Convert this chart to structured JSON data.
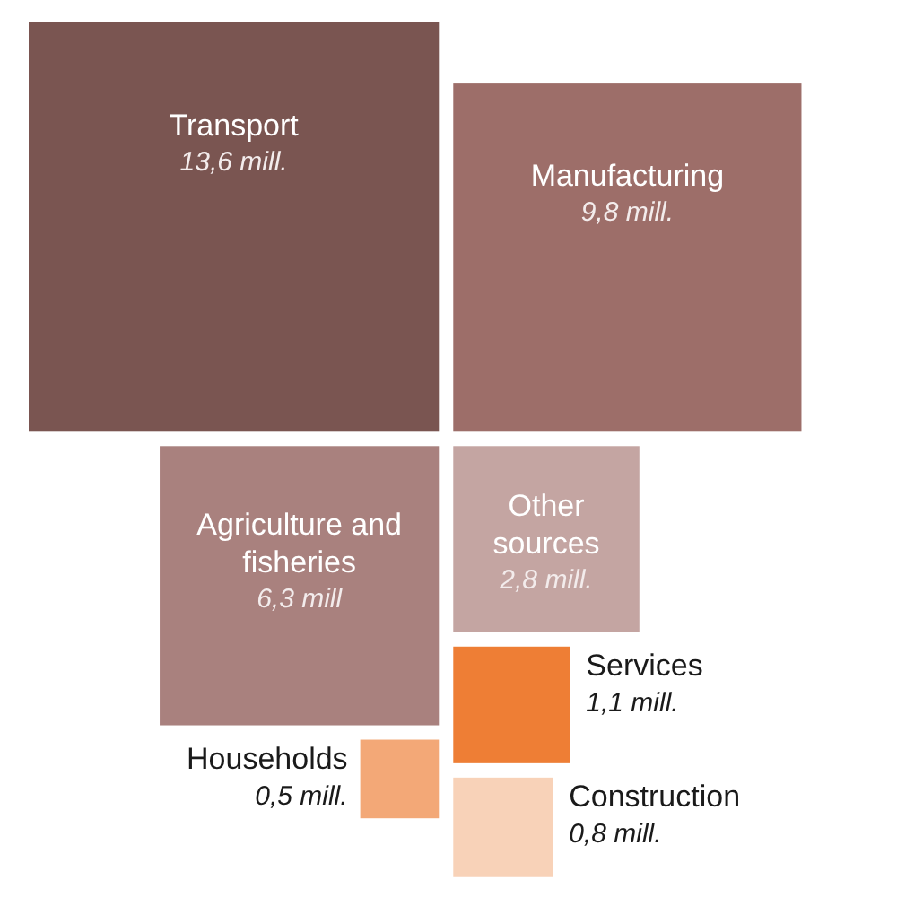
{
  "chart_data": {
    "type": "other",
    "categories": [
      "Transport",
      "Manufacturing",
      "Agriculture and fisheries",
      "Other sources",
      "Services",
      "Households",
      "Construction"
    ],
    "values": [
      13.6,
      9.8,
      6.3,
      2.8,
      1.1,
      0.5,
      0.8
    ],
    "value_labels": [
      "13,6 mill.",
      "9,8 mill.",
      "6,3 mill",
      "2,8 mill.",
      "1,1 mill.",
      "0,5 mill.",
      "0,8 mill."
    ],
    "colors": [
      "#7a5551",
      "#9d6e69",
      "#a9817e",
      "#c4a5a2",
      "#ee7e35",
      "#f3a877",
      "#f8d2b8"
    ]
  }
}
